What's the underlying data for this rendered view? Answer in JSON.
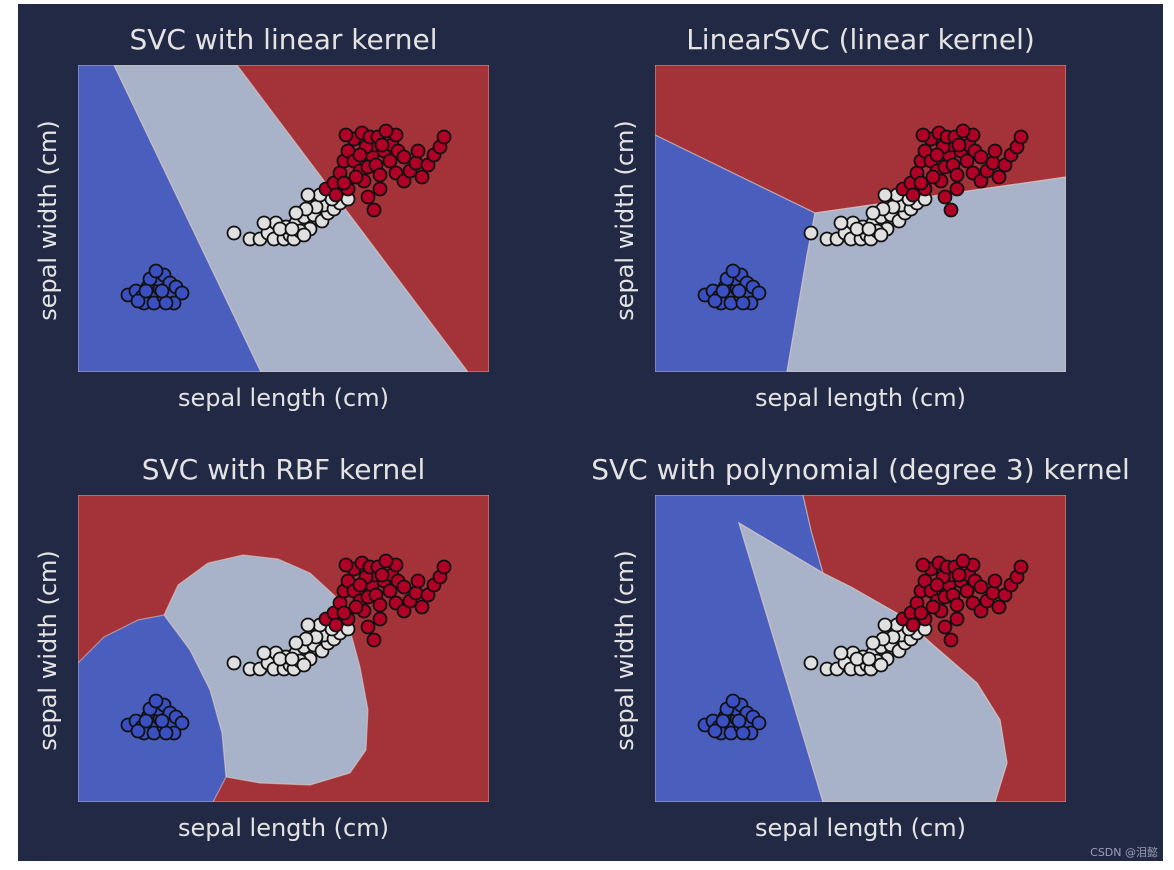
{
  "colors": {
    "background": "#222944",
    "text": "#e3e3e3",
    "class_0_region": "#4a5fbd",
    "class_1_region": "#a8b3ca",
    "class_2_region": "#a33239",
    "class_0_point": "#3a4fc1",
    "class_1_point": "#e0e0e0",
    "class_2_point": "#b10026",
    "point_edge": "#111111",
    "boundary": "#e8d0c4"
  },
  "watermark": "CSDN @泪懿",
  "chart_data": [
    {
      "type": "scatter",
      "title": "SVC with linear kernel",
      "xlabel": "sepal length (cm)",
      "ylabel": "sepal width (cm)",
      "grid": false,
      "legend": "none",
      "decision_regions": true
    },
    {
      "type": "scatter",
      "title": "LinearSVC (linear kernel)",
      "xlabel": "sepal length (cm)",
      "ylabel": "sepal width (cm)",
      "grid": false,
      "legend": "none",
      "decision_regions": true
    },
    {
      "type": "scatter",
      "title": "SVC with RBF kernel",
      "xlabel": "sepal length (cm)",
      "ylabel": "sepal width (cm)",
      "grid": false,
      "legend": "none",
      "decision_regions": true
    },
    {
      "type": "scatter",
      "title": "SVC with polynomial (degree 3) kernel",
      "xlabel": "sepal length (cm)",
      "ylabel": "sepal width (cm)",
      "grid": false,
      "legend": "none",
      "decision_regions": true
    }
  ]
}
